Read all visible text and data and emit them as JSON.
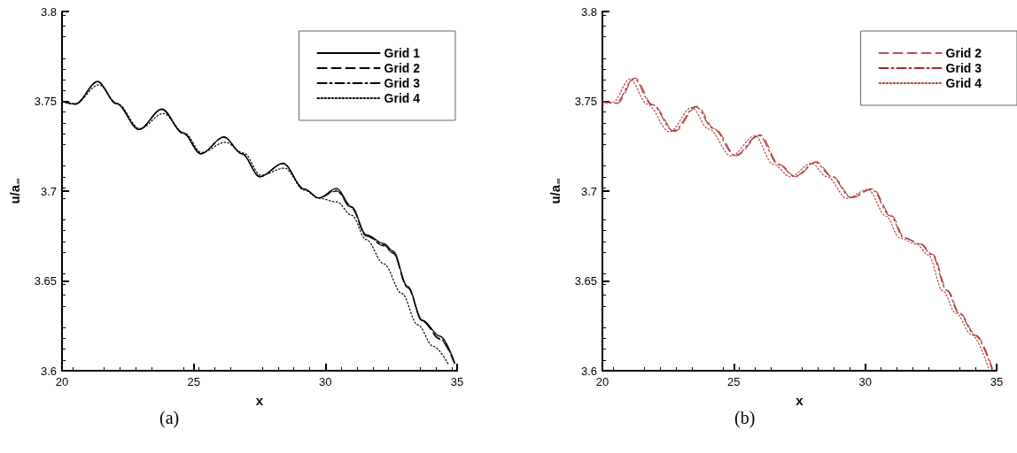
{
  "chart_data": [
    {
      "type": "line",
      "xlabel": "x",
      "ylabel": "u/a$_{∞}$",
      "xlim": [
        20,
        35
      ],
      "ylim": [
        3.6,
        3.8
      ],
      "xticks": [
        20,
        25,
        30,
        35
      ],
      "yticks": [
        3.6,
        3.65,
        3.7,
        3.75,
        3.8
      ],
      "legend": "top right",
      "annotations": [
        "(a)"
      ],
      "series": [
        {
          "name": "Grid 1",
          "color": "#000000",
          "line_style": "solid",
          "x": [
            20,
            20.5,
            21.35,
            22.07,
            22.92,
            23.79,
            24.6,
            25.27,
            26.15,
            26.83,
            27.51,
            28.39,
            29.19,
            29.75,
            30.43,
            30.99,
            31.55,
            32.22,
            32.56,
            33.12,
            33.68,
            34.35,
            34.91
          ],
          "values": [
            3.75,
            3.7484,
            3.761,
            3.7487,
            3.7343,
            3.7457,
            3.7323,
            3.7208,
            3.7302,
            3.7208,
            3.708,
            3.7156,
            3.7012,
            3.6962,
            3.7015,
            3.6913,
            3.6757,
            3.6708,
            3.6667,
            3.647,
            3.6281,
            3.6192,
            3.6044
          ]
        },
        {
          "name": "Grid 2",
          "color": "#000000",
          "line_style": "dashed",
          "x": [
            20,
            20.5,
            21.35,
            22.07,
            22.92,
            23.79,
            24.6,
            25.27,
            26.15,
            26.83,
            27.51,
            28.39,
            29.19,
            29.75,
            30.43,
            30.99,
            31.55,
            32.22,
            32.56,
            33.12,
            33.68,
            34.35,
            34.91
          ],
          "values": [
            3.75,
            3.7484,
            3.761,
            3.7487,
            3.7343,
            3.7455,
            3.7323,
            3.7208,
            3.73,
            3.7208,
            3.708,
            3.7153,
            3.7012,
            3.6962,
            3.7,
            3.6905,
            3.675,
            3.6695,
            3.6655,
            3.6462,
            3.6275,
            3.6175,
            3.6036
          ]
        },
        {
          "name": "Grid 3",
          "color": "#000000",
          "line_style": "dashdot",
          "x": [
            20,
            20.5,
            21.35,
            22.07,
            22.92,
            23.79,
            24.6,
            25.27,
            26.15,
            26.83,
            27.51,
            28.39,
            29.19,
            29.75,
            30.43,
            30.99,
            31.55,
            32.22,
            32.56,
            33.12,
            33.68,
            34.35,
            34.91
          ],
          "values": [
            3.75,
            3.7484,
            3.7608,
            3.7487,
            3.7343,
            3.7455,
            3.7323,
            3.7208,
            3.73,
            3.7208,
            3.708,
            3.7153,
            3.7012,
            3.6962,
            3.7005,
            3.691,
            3.6752,
            3.67,
            3.666,
            3.6465,
            3.6278,
            3.618,
            3.604
          ]
        },
        {
          "name": "Grid 4",
          "color": "#000000",
          "line_style": "dotted",
          "x": [
            20,
            20.5,
            21.4,
            22.1,
            22.95,
            23.85,
            24.65,
            25.3,
            26.2,
            26.9,
            27.55,
            28.45,
            29.2,
            29.75,
            30.43,
            31.0,
            31.55,
            32.22,
            32.9,
            33.5,
            34.1,
            34.69
          ],
          "values": [
            3.75,
            3.7488,
            3.7592,
            3.7487,
            3.7348,
            3.7432,
            3.7323,
            3.7215,
            3.7272,
            3.7212,
            3.7088,
            3.7128,
            3.7005,
            3.696,
            3.694,
            3.6865,
            3.673,
            3.6595,
            3.643,
            3.6256,
            3.6135,
            3.603
          ]
        }
      ]
    },
    {
      "type": "line",
      "xlabel": "x",
      "ylabel": "u/a$_{∞}$",
      "xlim": [
        20,
        35
      ],
      "ylim": [
        3.6,
        3.8
      ],
      "xticks": [
        20,
        25,
        30,
        35
      ],
      "yticks": [
        3.6,
        3.65,
        3.7,
        3.75,
        3.8
      ],
      "legend": "top right",
      "annotations": [
        "(b)"
      ],
      "series": [
        {
          "name": "Grid 2",
          "color": "#c0504d",
          "line_style": "dashed",
          "x": [
            20,
            20.56,
            21.24,
            21.92,
            22.75,
            23.6,
            24.27,
            25.1,
            26.0,
            26.74,
            27.36,
            28.15,
            28.76,
            29.5,
            30.28,
            31.0,
            31.51,
            32.13,
            32.57,
            33.13,
            33.6,
            34.2,
            34.85
          ],
          "values": [
            3.75,
            3.7488,
            3.763,
            3.748,
            3.7333,
            3.7472,
            3.7347,
            3.7197,
            3.7313,
            3.7147,
            3.708,
            3.7163,
            3.708,
            3.6963,
            3.7013,
            3.6863,
            3.6738,
            3.6705,
            3.6647,
            3.6447,
            3.632,
            3.62,
            3.601
          ]
        },
        {
          "name": "Grid 3",
          "color": "#a52a2a",
          "line_style": "dashdot",
          "x": [
            20,
            20.5,
            21.2,
            21.88,
            22.7,
            23.55,
            24.22,
            25.05,
            25.95,
            26.7,
            27.32,
            28.1,
            28.72,
            29.45,
            30.24,
            30.96,
            31.47,
            32.1,
            32.54,
            33.1,
            33.57,
            34.17,
            34.82
          ],
          "values": [
            3.75,
            3.749,
            3.7625,
            3.7482,
            3.7335,
            3.747,
            3.7348,
            3.7198,
            3.731,
            3.7148,
            3.7082,
            3.716,
            3.7082,
            3.6965,
            3.7012,
            3.6862,
            3.674,
            3.6705,
            3.6645,
            3.6448,
            3.632,
            3.6198,
            3.601
          ]
        },
        {
          "name": "Grid 4",
          "color": "#b04848",
          "line_style": "dotted",
          "x": [
            20,
            20.4,
            21.05,
            21.7,
            22.55,
            23.4,
            24.05,
            24.9,
            25.8,
            26.5,
            27.15,
            27.95,
            28.55,
            29.3,
            30.1,
            30.8,
            31.3,
            31.95,
            32.4,
            32.95,
            33.45,
            34.05,
            34.7
          ],
          "values": [
            3.7485,
            3.7495,
            3.7625,
            3.7485,
            3.733,
            3.7465,
            3.7345,
            3.7195,
            3.7308,
            3.715,
            3.708,
            3.7155,
            3.708,
            3.696,
            3.701,
            3.686,
            3.674,
            3.6705,
            3.6645,
            3.6445,
            3.632,
            3.62,
            3.601
          ]
        }
      ]
    }
  ]
}
